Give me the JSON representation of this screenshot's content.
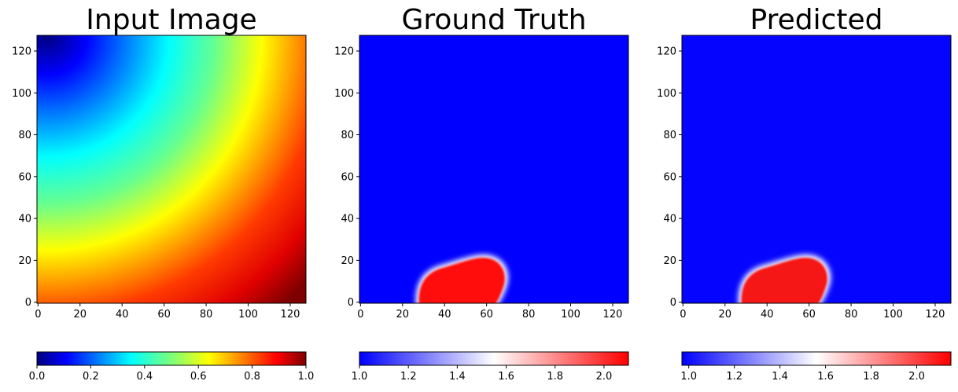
{
  "chart_data": [
    {
      "type": "heatmap",
      "title": "Input Image",
      "colormap": "jet",
      "x_ticks": [
        "0",
        "20",
        "40",
        "60",
        "80",
        "100",
        "120"
      ],
      "y_ticks": [
        "0",
        "20",
        "40",
        "60",
        "80",
        "100",
        "120"
      ],
      "xlim": [
        -0.5,
        127.5
      ],
      "ylim": [
        -0.5,
        127.5
      ],
      "grid": false,
      "field": {
        "kind": "radial-gradient",
        "low_at": [
          12,
          128
        ],
        "high_at": [
          128,
          0
        ],
        "min": 0.0,
        "max": 1.0
      },
      "colorbar": {
        "orientation": "horizontal",
        "range": [
          0.0,
          1.0
        ],
        "ticks": [
          "0.0",
          "0.2",
          "0.4",
          "0.6",
          "0.8",
          "1.0"
        ],
        "tick_values": [
          0.0,
          0.2,
          0.4,
          0.6,
          0.8,
          1.0
        ]
      }
    },
    {
      "type": "heatmap",
      "title": "Ground Truth",
      "colormap": "bwr",
      "x_ticks": [
        "0",
        "20",
        "40",
        "60",
        "80",
        "100",
        "120"
      ],
      "y_ticks": [
        "0",
        "20",
        "40",
        "60",
        "80",
        "100",
        "120"
      ],
      "xlim": [
        -0.5,
        127.5
      ],
      "ylim": [
        -0.5,
        127.5
      ],
      "grid": false,
      "field": {
        "kind": "blob",
        "background": 1.0,
        "peak": 2.1,
        "blob_x_range": [
          27,
          69
        ],
        "blob_y_range": [
          0,
          22
        ]
      },
      "colorbar": {
        "orientation": "horizontal",
        "range": [
          1.0,
          2.1
        ],
        "ticks": [
          "1.0",
          "1.2",
          "1.4",
          "1.6",
          "1.8",
          "2.0"
        ],
        "tick_values": [
          1.0,
          1.2,
          1.4,
          1.6,
          1.8,
          2.0
        ]
      }
    },
    {
      "type": "heatmap",
      "title": "Predicted",
      "colormap": "bwr",
      "x_ticks": [
        "0",
        "20",
        "40",
        "60",
        "80",
        "100",
        "120"
      ],
      "y_ticks": [
        "0",
        "20",
        "40",
        "60",
        "80",
        "100",
        "120"
      ],
      "xlim": [
        -0.5,
        127.5
      ],
      "ylim": [
        -0.5,
        127.5
      ],
      "grid": false,
      "field": {
        "kind": "blob",
        "background": 1.0,
        "peak": 2.05,
        "blob_x_range": [
          27,
          69
        ],
        "blob_y_range": [
          0,
          22
        ]
      },
      "colorbar": {
        "orientation": "horizontal",
        "range": [
          0.97,
          2.15
        ],
        "ticks": [
          "1.0",
          "1.2",
          "1.4",
          "1.6",
          "1.8",
          "2.0"
        ],
        "tick_values": [
          1.0,
          1.2,
          1.4,
          1.6,
          1.8,
          2.0
        ]
      }
    }
  ],
  "colors": {
    "jet": [
      "#00007f",
      "#0000ff",
      "#00ffff",
      "#ffff00",
      "#ff0000",
      "#7f0000"
    ],
    "bwr": [
      "#0000ff",
      "#ffffff",
      "#ff0000"
    ],
    "blob": "#f50f14"
  }
}
